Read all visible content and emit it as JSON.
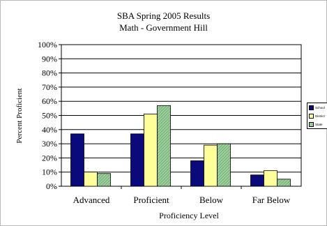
{
  "chart_data": {
    "type": "bar",
    "title": "SBA Spring 2005 Results",
    "subtitle": "Math - Government Hill",
    "xlabel": "Proficiency Level",
    "ylabel": "Percent Proficient",
    "categories": [
      "Advanced",
      "Proficient",
      "Below",
      "Far Below"
    ],
    "yticks": [
      "0%",
      "10%",
      "20%",
      "30%",
      "40%",
      "50%",
      "60%",
      "70%",
      "80%",
      "90%",
      "100%"
    ],
    "ylim": [
      0,
      100
    ],
    "grid": true,
    "legend_position": "right",
    "series": [
      {
        "name": "School",
        "values": [
          37,
          37,
          18,
          8
        ],
        "color": "#0a0a7a"
      },
      {
        "name": "District",
        "values": [
          10,
          51,
          29,
          11
        ],
        "color": "#ffff99"
      },
      {
        "name": "State",
        "values": [
          9,
          57,
          30,
          5
        ],
        "color": "#99cc99"
      }
    ]
  }
}
